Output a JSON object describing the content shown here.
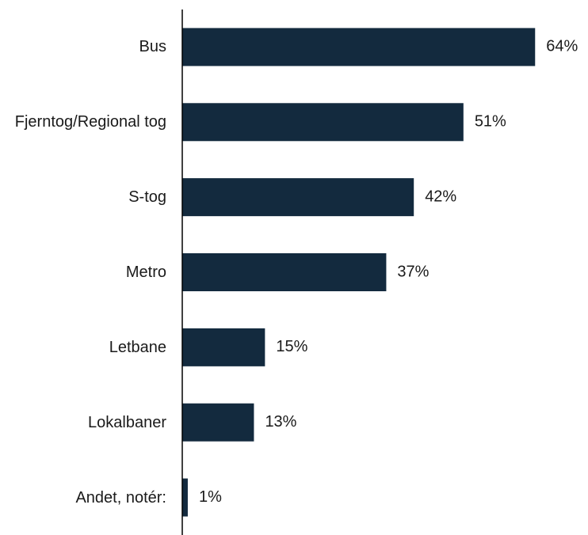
{
  "chart_data": {
    "type": "barh",
    "categories": [
      "Bus",
      "Fjerntog/Regional tog",
      "S-tog",
      "Metro",
      "Letbane",
      "Lokalbaner",
      "Andet, notér:"
    ],
    "values": [
      64,
      51,
      42,
      37,
      15,
      13,
      1
    ],
    "value_labels": [
      "64%",
      "51%",
      "42%",
      "37%",
      "15%",
      "13%",
      "1%"
    ],
    "color": "#132a3e",
    "xlim": [
      0,
      70
    ]
  }
}
